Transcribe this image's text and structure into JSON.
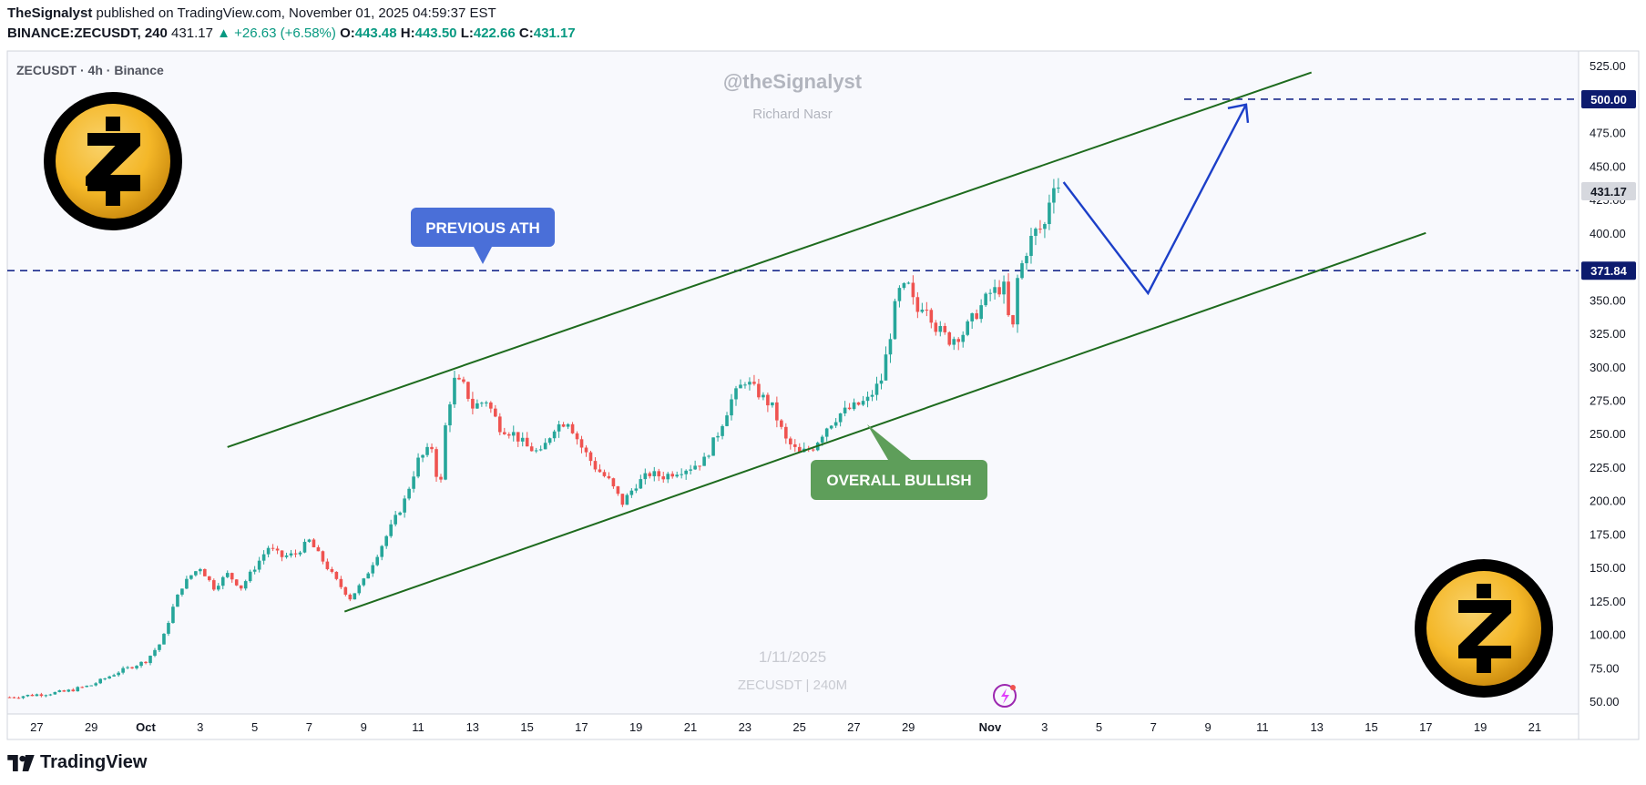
{
  "header": {
    "author": "TheSignalyst",
    "published_text": "published on TradingView.com, November 01, 2025 04:59:37 EST",
    "symbol_line": "BINANCE:ZECUSDT, 240",
    "last": "431.17",
    "change": "+26.63 (+6.58%)",
    "o_label": "O:",
    "o_value": "443.48",
    "h_label": "H:",
    "h_value": "443.50",
    "l_label": "L:",
    "l_value": "422.66",
    "c_label": "C:",
    "c_value": "431.17"
  },
  "pane": {
    "legend": "ZECUSDT · 4h · Binance",
    "watermark_handle": "@theSignalyst",
    "watermark_name": "Richard Nasr",
    "watermark_date": "1/11/2025",
    "watermark_symbol": "ZECUSDT | 240M"
  },
  "annotations": {
    "previous_ath": "PREVIOUS ATH",
    "overall_bullish": "OVERALL BULLISH"
  },
  "colors": {
    "up": "#26a69a",
    "down": "#ef5350",
    "channel": "#1e6b1e",
    "level_line": "#1a2a8c",
    "projection": "#1c3fc8",
    "callout_blue": "#4a6fd8",
    "callout_green": "#5e9e5a",
    "logo_gold": "#f4b728"
  },
  "footer": {
    "brand": "TradingView"
  },
  "chart_data": {
    "type": "candlestick",
    "timeframe": "4h",
    "symbol": "ZECUSDT",
    "ylim": [
      45,
      530
    ],
    "y_ticks": [
      525,
      500,
      475,
      450,
      425,
      400,
      375,
      350,
      325,
      300,
      275,
      250,
      225,
      200,
      175,
      150,
      125,
      100,
      75,
      50
    ],
    "y_tick_labels": [
      "525.00",
      "500.00",
      "475.00",
      "450.00",
      "425.00",
      "400.00",
      "375.00",
      "350.00",
      "325.00",
      "300.00",
      "275.00",
      "250.00",
      "225.00",
      "200.00",
      "175.00",
      "150.00",
      "125.00",
      "100.00",
      "75.00",
      "50.00"
    ],
    "x_ticks": [
      {
        "label": "27",
        "day": -4
      },
      {
        "label": "29",
        "day": -2
      },
      {
        "label": "Oct",
        "day": 0,
        "bold": true
      },
      {
        "label": "3",
        "day": 2
      },
      {
        "label": "5",
        "day": 4
      },
      {
        "label": "7",
        "day": 6
      },
      {
        "label": "9",
        "day": 8
      },
      {
        "label": "11",
        "day": 10
      },
      {
        "label": "13",
        "day": 12
      },
      {
        "label": "15",
        "day": 14
      },
      {
        "label": "17",
        "day": 16
      },
      {
        "label": "19",
        "day": 18
      },
      {
        "label": "21",
        "day": 20
      },
      {
        "label": "23",
        "day": 22
      },
      {
        "label": "25",
        "day": 24
      },
      {
        "label": "27",
        "day": 26
      },
      {
        "label": "29",
        "day": 28
      },
      {
        "label": "Nov",
        "day": 31,
        "bold": true
      },
      {
        "label": "3",
        "day": 33
      },
      {
        "label": "5",
        "day": 35
      },
      {
        "label": "7",
        "day": 37
      },
      {
        "label": "9",
        "day": 39
      },
      {
        "label": "11",
        "day": 41
      },
      {
        "label": "13",
        "day": 43
      },
      {
        "label": "15",
        "day": 45
      },
      {
        "label": "17",
        "day": 47
      },
      {
        "label": "19",
        "day": 49
      },
      {
        "label": "21",
        "day": 51
      }
    ],
    "price_labels": [
      {
        "value": 500.0,
        "label": "500.00",
        "style": "dark"
      },
      {
        "value": 431.17,
        "label": "431.17",
        "style": "grey"
      },
      {
        "value": 371.84,
        "label": "371.84",
        "style": "dark"
      }
    ],
    "horizontal_levels": [
      371.84,
      500.0
    ],
    "close_path": [
      [
        -5.0,
        53
      ],
      [
        -4.0,
        55
      ],
      [
        -3.0,
        57
      ],
      [
        -2.0,
        62
      ],
      [
        -1.0,
        72
      ],
      [
        0.0,
        80
      ],
      [
        0.6,
        95
      ],
      [
        1.0,
        120
      ],
      [
        1.3,
        135
      ],
      [
        1.7,
        145
      ],
      [
        2.0,
        150
      ],
      [
        2.5,
        135
      ],
      [
        3.0,
        145
      ],
      [
        3.5,
        135
      ],
      [
        4.0,
        150
      ],
      [
        4.5,
        165
      ],
      [
        5.0,
        158
      ],
      [
        5.5,
        160
      ],
      [
        6.0,
        170
      ],
      [
        6.5,
        155
      ],
      [
        7.0,
        140
      ],
      [
        7.5,
        127
      ],
      [
        8.0,
        140
      ],
      [
        8.5,
        160
      ],
      [
        9.0,
        180
      ],
      [
        9.5,
        200
      ],
      [
        10.0,
        230
      ],
      [
        10.5,
        240
      ],
      [
        10.8,
        205
      ],
      [
        11.0,
        255
      ],
      [
        11.3,
        290
      ],
      [
        11.7,
        285
      ],
      [
        12.0,
        270
      ],
      [
        12.5,
        275
      ],
      [
        13.0,
        255
      ],
      [
        13.5,
        250
      ],
      [
        14.0,
        240
      ],
      [
        14.5,
        235
      ],
      [
        15.0,
        255
      ],
      [
        15.5,
        260
      ],
      [
        16.0,
        240
      ],
      [
        16.5,
        225
      ],
      [
        17.0,
        215
      ],
      [
        17.5,
        198
      ],
      [
        18.0,
        212
      ],
      [
        18.5,
        220
      ],
      [
        19.0,
        218
      ],
      [
        19.5,
        222
      ],
      [
        20.0,
        225
      ],
      [
        20.5,
        230
      ],
      [
        21.0,
        250
      ],
      [
        21.5,
        275
      ],
      [
        22.0,
        290
      ],
      [
        22.5,
        280
      ],
      [
        23.0,
        270
      ],
      [
        23.5,
        245
      ],
      [
        24.0,
        235
      ],
      [
        24.5,
        240
      ],
      [
        25.0,
        255
      ],
      [
        25.5,
        265
      ],
      [
        26.0,
        270
      ],
      [
        26.5,
        275
      ],
      [
        27.0,
        290
      ],
      [
        27.3,
        320
      ],
      [
        27.6,
        355
      ],
      [
        28.0,
        360
      ],
      [
        28.3,
        340
      ],
      [
        28.6,
        350
      ],
      [
        29.0,
        330
      ],
      [
        29.5,
        320
      ],
      [
        30.0,
        325
      ],
      [
        30.5,
        340
      ],
      [
        31.0,
        355
      ],
      [
        31.5,
        360
      ],
      [
        31.8,
        320
      ],
      [
        32.0,
        365
      ],
      [
        32.3,
        385
      ],
      [
        32.6,
        400
      ],
      [
        33.0,
        405
      ],
      [
        33.3,
        440
      ],
      [
        33.6,
        431.17
      ]
    ],
    "channel_upper": {
      "start": [
        3.0,
        240
      ],
      "end": [
        42.8,
        520
      ]
    },
    "channel_lower": {
      "start": [
        7.3,
        117
      ],
      "end": [
        47.0,
        400
      ]
    },
    "projection": [
      [
        33.7,
        438
      ],
      [
        36.8,
        355
      ],
      [
        40.4,
        496
      ]
    ]
  }
}
